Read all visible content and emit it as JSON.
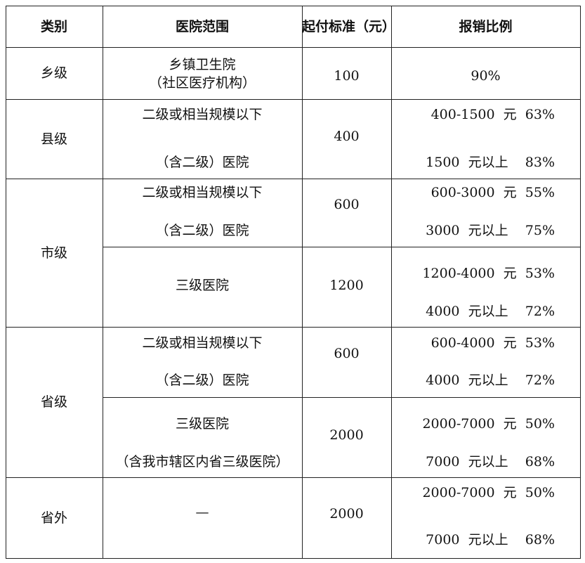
{
  "header": [
    "类别",
    "医院范围",
    "起付标准（元）",
    "报销比例"
  ],
  "rows": [
    {
      "category": "乡级",
      "sub": [
        {
          "hospital": [
            "乡镇卫生院",
            "（社区医疗机构）"
          ],
          "deductible": "100",
          "reimbursement": [
            "90%"
          ]
        }
      ]
    },
    {
      "category": "县级",
      "sub": [
        {
          "hospital": [
            "二级或相当规模以下",
            "（含二级）医院"
          ],
          "deductible": "400",
          "reimbursement": [
            "400-1500  元  63%",
            "1500  元以上    83%"
          ]
        }
      ]
    },
    {
      "category": "市级",
      "sub": [
        {
          "hospital": [
            "二级或相当规模以下",
            "（含二级）医院"
          ],
          "deductible": "600",
          "reimbursement": [
            "600-3000  元  55%",
            "3000  元以上    75%"
          ]
        },
        {
          "hospital": [
            "三级医院"
          ],
          "deductible": "1200",
          "reimbursement": [
            "1200-4000  元  53%",
            "4000  元以上    72%"
          ]
        }
      ]
    },
    {
      "category": "省级",
      "sub": [
        {
          "hospital": [
            "二级或相当规模以下",
            "（含二级）医院"
          ],
          "deductible": "600",
          "reimbursement": [
            "600-4000  元  53%",
            "4000  元以上    72%"
          ]
        },
        {
          "hospital": [
            "三级医院",
            "（含我市辖区内省三级医院）"
          ],
          "deductible": "2000",
          "reimbursement": [
            "2000-7000  元  50%",
            "7000  元以上    68%"
          ]
        }
      ]
    },
    {
      "category": "省外",
      "sub": [
        {
          "hospital": [
            "—"
          ],
          "deductible": "2000",
          "reimbursement": [
            "2000-7000  元  50%",
            "7000  元以上    68%"
          ]
        }
      ]
    }
  ]
}
